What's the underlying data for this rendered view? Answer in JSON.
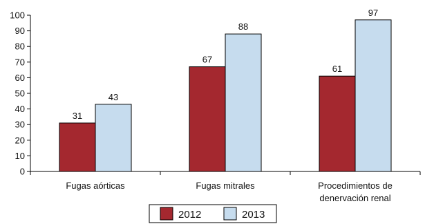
{
  "chart_data": {
    "type": "bar",
    "categories": [
      [
        "Fugas aórticas"
      ],
      [
        "Fugas mitrales"
      ],
      [
        "Procedimientos de",
        "denervación renal"
      ]
    ],
    "series": [
      {
        "name": "2012",
        "values": [
          31,
          67,
          61
        ],
        "color": "#a4282f"
      },
      {
        "name": "2013",
        "values": [
          43,
          88,
          97
        ],
        "color": "#c6dcee"
      }
    ],
    "ylim": [
      0,
      100
    ],
    "yticks": [
      0,
      10,
      20,
      30,
      40,
      50,
      60,
      70,
      80,
      90,
      100
    ],
    "grid": false,
    "legend": "bottom-center",
    "title": "",
    "xlabel": "",
    "ylabel": ""
  }
}
